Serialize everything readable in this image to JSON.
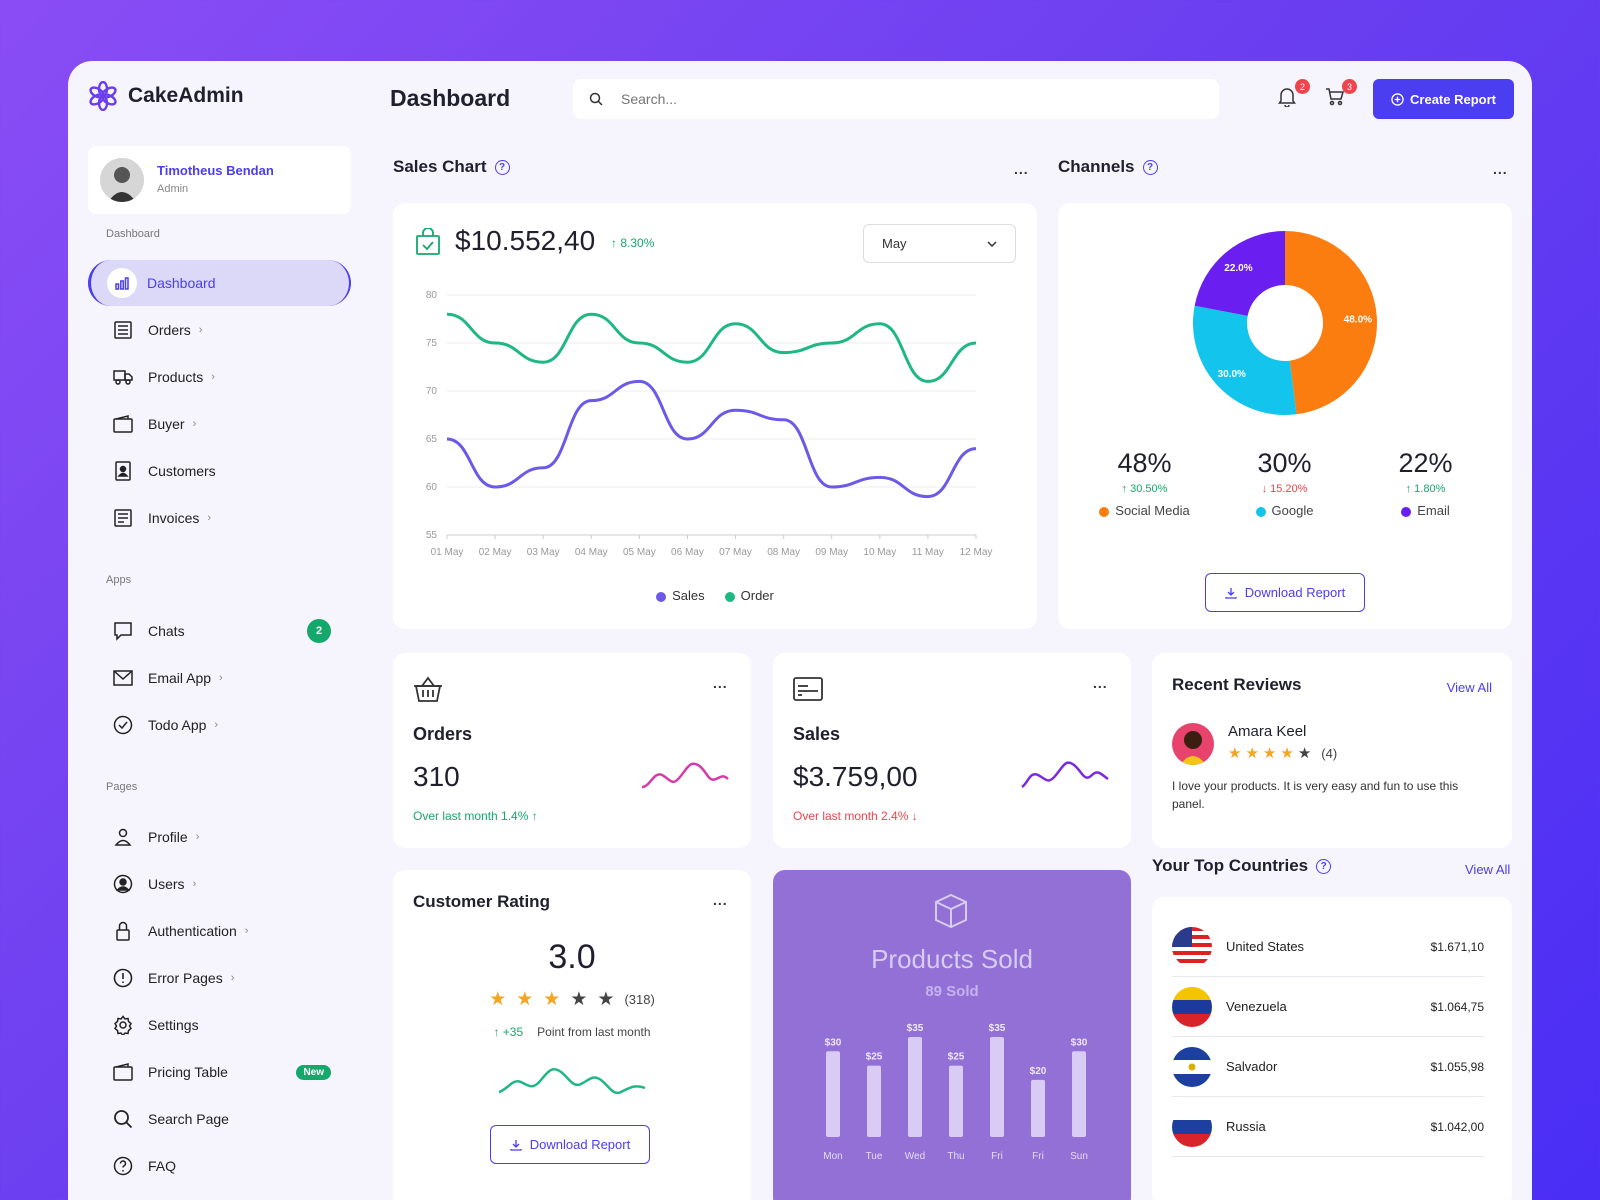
{
  "app": {
    "name": "CakeAdmin"
  },
  "user": {
    "name": "Timotheus Bendan",
    "role": "Admin"
  },
  "sidebar": {
    "sections": [
      "Dashboard",
      "Apps",
      "Pages"
    ],
    "dashboard_items": [
      {
        "label": "Dashboard",
        "icon": "chart-icon",
        "active": true
      },
      {
        "label": "Orders",
        "icon": "list-icon"
      },
      {
        "label": "Products",
        "icon": "truck-icon"
      },
      {
        "label": "Buyer",
        "icon": "wallet-icon"
      },
      {
        "label": "Customers",
        "icon": "contact-icon"
      },
      {
        "label": "Invoices",
        "icon": "invoice-icon"
      }
    ],
    "app_items": [
      {
        "label": "Chats",
        "icon": "chat-icon",
        "badge": "2"
      },
      {
        "label": "Email App",
        "icon": "mail-icon"
      },
      {
        "label": "Todo App",
        "icon": "check-circle-icon"
      }
    ],
    "page_items": [
      {
        "label": "Profile",
        "icon": "user-icon"
      },
      {
        "label": "Users",
        "icon": "users-icon"
      },
      {
        "label": "Authentication",
        "icon": "lock-icon"
      },
      {
        "label": "Error Pages",
        "icon": "alert-icon"
      },
      {
        "label": "Settings",
        "icon": "gear-icon"
      },
      {
        "label": "Pricing Table",
        "icon": "wallet-icon",
        "badge": "New"
      },
      {
        "label": "Search Page",
        "icon": "search-icon"
      },
      {
        "label": "FAQ",
        "icon": "help-icon"
      }
    ]
  },
  "header": {
    "title": "Dashboard",
    "search_placeholder": "Search...",
    "notifications_count": "2",
    "cart_count": "3",
    "create_report": "Create Report"
  },
  "sales_chart": {
    "title": "Sales Chart",
    "amount": "$10.552,40",
    "change": "↑ 8.30%",
    "month": "May"
  },
  "channels": {
    "title": "Channels",
    "items": [
      {
        "pct": "48%",
        "change": "↑ 30.50%",
        "label": "Social Media",
        "dir": "up",
        "color": "#fb7d10"
      },
      {
        "pct": "30%",
        "change": "↓ 15.20%",
        "label": "Google",
        "dir": "down",
        "color": "#13c5ec"
      },
      {
        "pct": "22%",
        "change": "↑ 1.80%",
        "label": "Email",
        "dir": "up",
        "color": "#6a1ff0"
      }
    ],
    "download": "Download Report"
  },
  "orders_card": {
    "title": "Orders",
    "value": "310",
    "note": "Over last month 1.4% ↑"
  },
  "sales_card": {
    "title": "Sales",
    "value": "$3.759,00",
    "note": "Over last month 2.4% ↓"
  },
  "reviews": {
    "title": "Recent Reviews",
    "view_all": "View All",
    "name": "Amara Keel",
    "rating_count": "(4)",
    "rating": 4,
    "text": "I love your products. It is very easy and fun to use this panel."
  },
  "customer_rating": {
    "title": "Customer Rating",
    "score": "3.0",
    "rating": 3,
    "count": "(318)",
    "delta": "↑ +35",
    "delta_text": "Point from last month",
    "download": "Download Report"
  },
  "products_sold": {
    "title": "Products Sold",
    "subtitle": "89 Sold"
  },
  "top_countries": {
    "title": "Your Top Countries",
    "view_all": "View All",
    "items": [
      {
        "name": "United States",
        "value": "$1.671,10",
        "flag": "us-flag-icon"
      },
      {
        "name": "Venezuela",
        "value": "$1.064,75",
        "flag": "venezuela-flag-icon"
      },
      {
        "name": "Salvador",
        "value": "$1.055,98",
        "flag": "salvador-flag-icon"
      },
      {
        "name": "Russia",
        "value": "$1.042,00",
        "flag": "russia-flag-icon"
      }
    ]
  },
  "chart_data": [
    {
      "type": "line",
      "x": [
        "01 May",
        "02 May",
        "03 May",
        "04 May",
        "05 May",
        "06 May",
        "07 May",
        "08 May",
        "09 May",
        "10 May",
        "11 May",
        "12 May"
      ],
      "series": [
        {
          "name": "Sales",
          "values": [
            65,
            60,
            62,
            69,
            71,
            65,
            68,
            67,
            60,
            61,
            59,
            64
          ],
          "color": "#6b5ae8"
        },
        {
          "name": "Order",
          "values": [
            78,
            75,
            73,
            78,
            75,
            73,
            77,
            74,
            75,
            77,
            71,
            75
          ],
          "color": "#1fb882"
        }
      ],
      "ylim": [
        55,
        80
      ],
      "yticks": [
        55,
        60,
        65,
        70,
        75,
        80
      ],
      "legend": "bottom"
    },
    {
      "type": "pie",
      "labels": [
        "Social Media",
        "Google",
        "Email"
      ],
      "values": [
        48.0,
        30.0,
        22.0
      ],
      "slice_labels": [
        "48.0%",
        "30.0%",
        "22.0%"
      ],
      "colors": [
        "#fb7d10",
        "#13c5ec",
        "#6a1ff0"
      ]
    },
    {
      "type": "bar",
      "categories": [
        "Mon",
        "Tue",
        "Wed",
        "Thu",
        "Fri",
        "Fri",
        "Sun"
      ],
      "values": [
        30,
        25,
        35,
        25,
        35,
        20,
        30
      ],
      "value_labels": [
        "$30",
        "$25",
        "$35",
        "$25",
        "$35",
        "$20",
        "$30"
      ]
    }
  ]
}
